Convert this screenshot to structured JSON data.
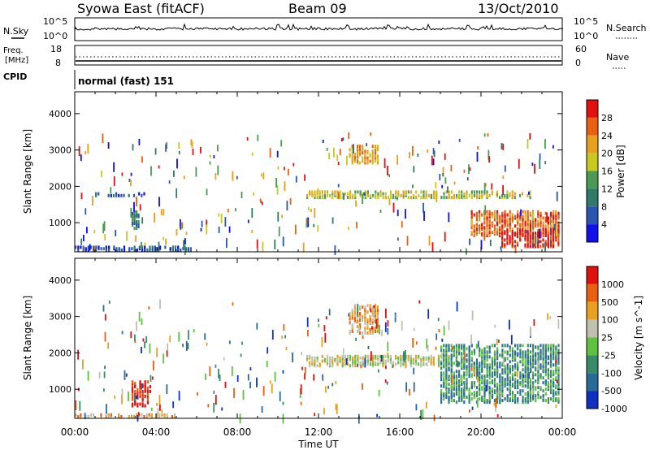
{
  "header": {
    "station": "Syowa East (fitACF)",
    "beam": "Beam 09",
    "date": "13/Oct/2010"
  },
  "noise_panel": {
    "left_label": "N.Sky",
    "right_label": "N.Search",
    "ytick_top": "10^5",
    "ytick_bottom": "10^0"
  },
  "freq_panel": {
    "left_label_1": "Freq.",
    "left_label_2": "[MHz]",
    "left_top": "18",
    "left_bottom": "8",
    "right_label": "Nave",
    "right_top": "60",
    "right_bottom": "0"
  },
  "cpid": {
    "label": "CPID",
    "value": "normal (fast) 151"
  },
  "chart_data": [
    {
      "type": "heatmap",
      "name": "power",
      "ylabel": "Slant Range [km]",
      "xlabel": "",
      "yticks": [
        "1000",
        "2000",
        "3000",
        "4000"
      ],
      "ylim": [
        200,
        4600
      ],
      "xlim_hours": [
        0,
        24
      ],
      "colorbar": {
        "label": "Power [dB]",
        "ticks": [
          "4",
          "8",
          "12",
          "16",
          "20",
          "24",
          "28"
        ],
        "colors": [
          "#1010e8",
          "#2a55b0",
          "#2f7a68",
          "#4a9a55",
          "#c8c820",
          "#e8a020",
          "#e86010",
          "#e01010"
        ]
      },
      "regions": [
        {
          "x": [
            1.0,
            3.5
          ],
          "y": [
            1700,
            1800
          ],
          "level": 1
        },
        {
          "x": [
            2.8,
            3.2
          ],
          "y": [
            800,
            1300
          ],
          "level": 2
        },
        {
          "x": [
            0.0,
            5.8
          ],
          "y": [
            200,
            320
          ],
          "level": 1
        },
        {
          "x": [
            11.4,
            22.5
          ],
          "y": [
            1650,
            1850
          ],
          "level": 4
        },
        {
          "x": [
            13.5,
            15.0
          ],
          "y": [
            2600,
            3100
          ],
          "level": 5
        },
        {
          "x": [
            19.5,
            23.9
          ],
          "y": [
            600,
            1300
          ],
          "level": 6
        },
        {
          "x": [
            21.0,
            23.9
          ],
          "y": [
            300,
            800
          ],
          "level": 7
        }
      ]
    },
    {
      "type": "heatmap",
      "name": "velocity",
      "ylabel": "Slant Range [km]",
      "xlabel": "Time UT",
      "yticks": [
        "1000",
        "2000",
        "3000",
        "4000"
      ],
      "xticks": [
        "00:00",
        "04:00",
        "08:00",
        "12:00",
        "16:00",
        "20:00",
        "00:00"
      ],
      "ylim": [
        200,
        4600
      ],
      "xlim_hours": [
        0,
        24
      ],
      "colorbar": {
        "label": "Velocity [m s^-1]",
        "ticks": [
          "1000",
          "500",
          "100",
          "25",
          "-25",
          "-100",
          "-500",
          "-1000"
        ],
        "colors": [
          "#1030c0",
          "#2a6a9a",
          "#3a8a6a",
          "#60c040",
          "#c0c0b0",
          "#e8a020",
          "#e86010",
          "#e01010"
        ]
      },
      "regions": [
        {
          "x": [
            2.8,
            3.8
          ],
          "y": [
            500,
            1200
          ],
          "level": 7
        },
        {
          "x": [
            11.4,
            18.5
          ],
          "y": [
            1600,
            1900
          ],
          "level": 4
        },
        {
          "x": [
            13.5,
            15.0
          ],
          "y": [
            2500,
            3300
          ],
          "level": 5
        },
        {
          "x": [
            18.0,
            23.9
          ],
          "y": [
            600,
            2200
          ],
          "level": 2
        },
        {
          "x": [
            0.0,
            5.0
          ],
          "y": [
            200,
            300
          ],
          "level": 5
        }
      ]
    }
  ]
}
